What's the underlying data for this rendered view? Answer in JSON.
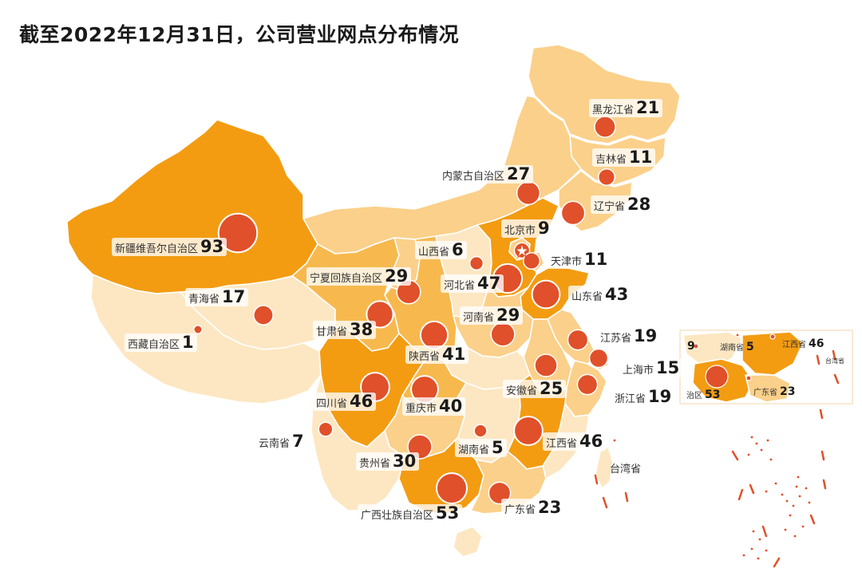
{
  "title": "截至2022年12月31日，公司营业网点分布情况",
  "colors": {
    "bubble": "#e0502a",
    "bubble_stroke": "#ffffff",
    "region_low": "#fde7c2",
    "region_mid": "#fbd08a",
    "region_high": "#f7b94e",
    "region_top": "#f39c12",
    "border": "#ffffff",
    "island": "#e0502a"
  },
  "provinces": [
    {
      "name": "黑龙江省",
      "count": "21",
      "tier": "mid"
    },
    {
      "name": "吉林省",
      "count": "11",
      "tier": "mid"
    },
    {
      "name": "辽宁省",
      "count": "28",
      "tier": "mid"
    },
    {
      "name": "内蒙古自治区",
      "count": "27",
      "tier": "mid"
    },
    {
      "name": "北京市",
      "count": "9",
      "tier": "mid"
    },
    {
      "name": "天津市",
      "count": "11",
      "tier": "mid"
    },
    {
      "name": "山西省",
      "count": "6",
      "tier": "low"
    },
    {
      "name": "河北省",
      "count": "47",
      "tier": "top"
    },
    {
      "name": "山东省",
      "count": "43",
      "tier": "top"
    },
    {
      "name": "新疆维吾尔自治区",
      "count": "93",
      "tier": "top"
    },
    {
      "name": "宁夏回族自治区",
      "count": "29",
      "tier": "mid"
    },
    {
      "name": "青海省",
      "count": "17",
      "tier": "low"
    },
    {
      "name": "甘肃省",
      "count": "38",
      "tier": "high"
    },
    {
      "name": "河南省",
      "count": "29",
      "tier": "mid"
    },
    {
      "name": "西藏自治区",
      "count": "1",
      "tier": "low"
    },
    {
      "name": "陕西省",
      "count": "41",
      "tier": "high"
    },
    {
      "name": "江苏省",
      "count": "19",
      "tier": "mid"
    },
    {
      "name": "上海市",
      "count": "15",
      "tier": "mid"
    },
    {
      "name": "安徽省",
      "count": "25",
      "tier": "mid"
    },
    {
      "name": "浙江省",
      "count": "19",
      "tier": "mid"
    },
    {
      "name": "四川省",
      "count": "46",
      "tier": "top"
    },
    {
      "name": "重庆市",
      "count": "40",
      "tier": "high"
    },
    {
      "name": "云南省",
      "count": "7",
      "tier": "low"
    },
    {
      "name": "湖南省",
      "count": "5",
      "tier": "low"
    },
    {
      "name": "江西省",
      "count": "46",
      "tier": "top"
    },
    {
      "name": "贵州省",
      "count": "30",
      "tier": "mid"
    },
    {
      "name": "台湾省",
      "count": "",
      "tier": "low"
    },
    {
      "name": "广西壮族自治区",
      "count": "53",
      "tier": "top"
    },
    {
      "name": "广东省",
      "count": "23",
      "tier": "mid"
    }
  ],
  "inset": {
    "labels": [
      {
        "name": "",
        "count": "9"
      },
      {
        "name": "湖南省",
        "count": "5"
      },
      {
        "name": "江西省",
        "count": "46"
      },
      {
        "name": "台湾省",
        "count": ""
      },
      {
        "name": "治区",
        "count": "53"
      },
      {
        "name": "广东省",
        "count": "23"
      }
    ]
  }
}
